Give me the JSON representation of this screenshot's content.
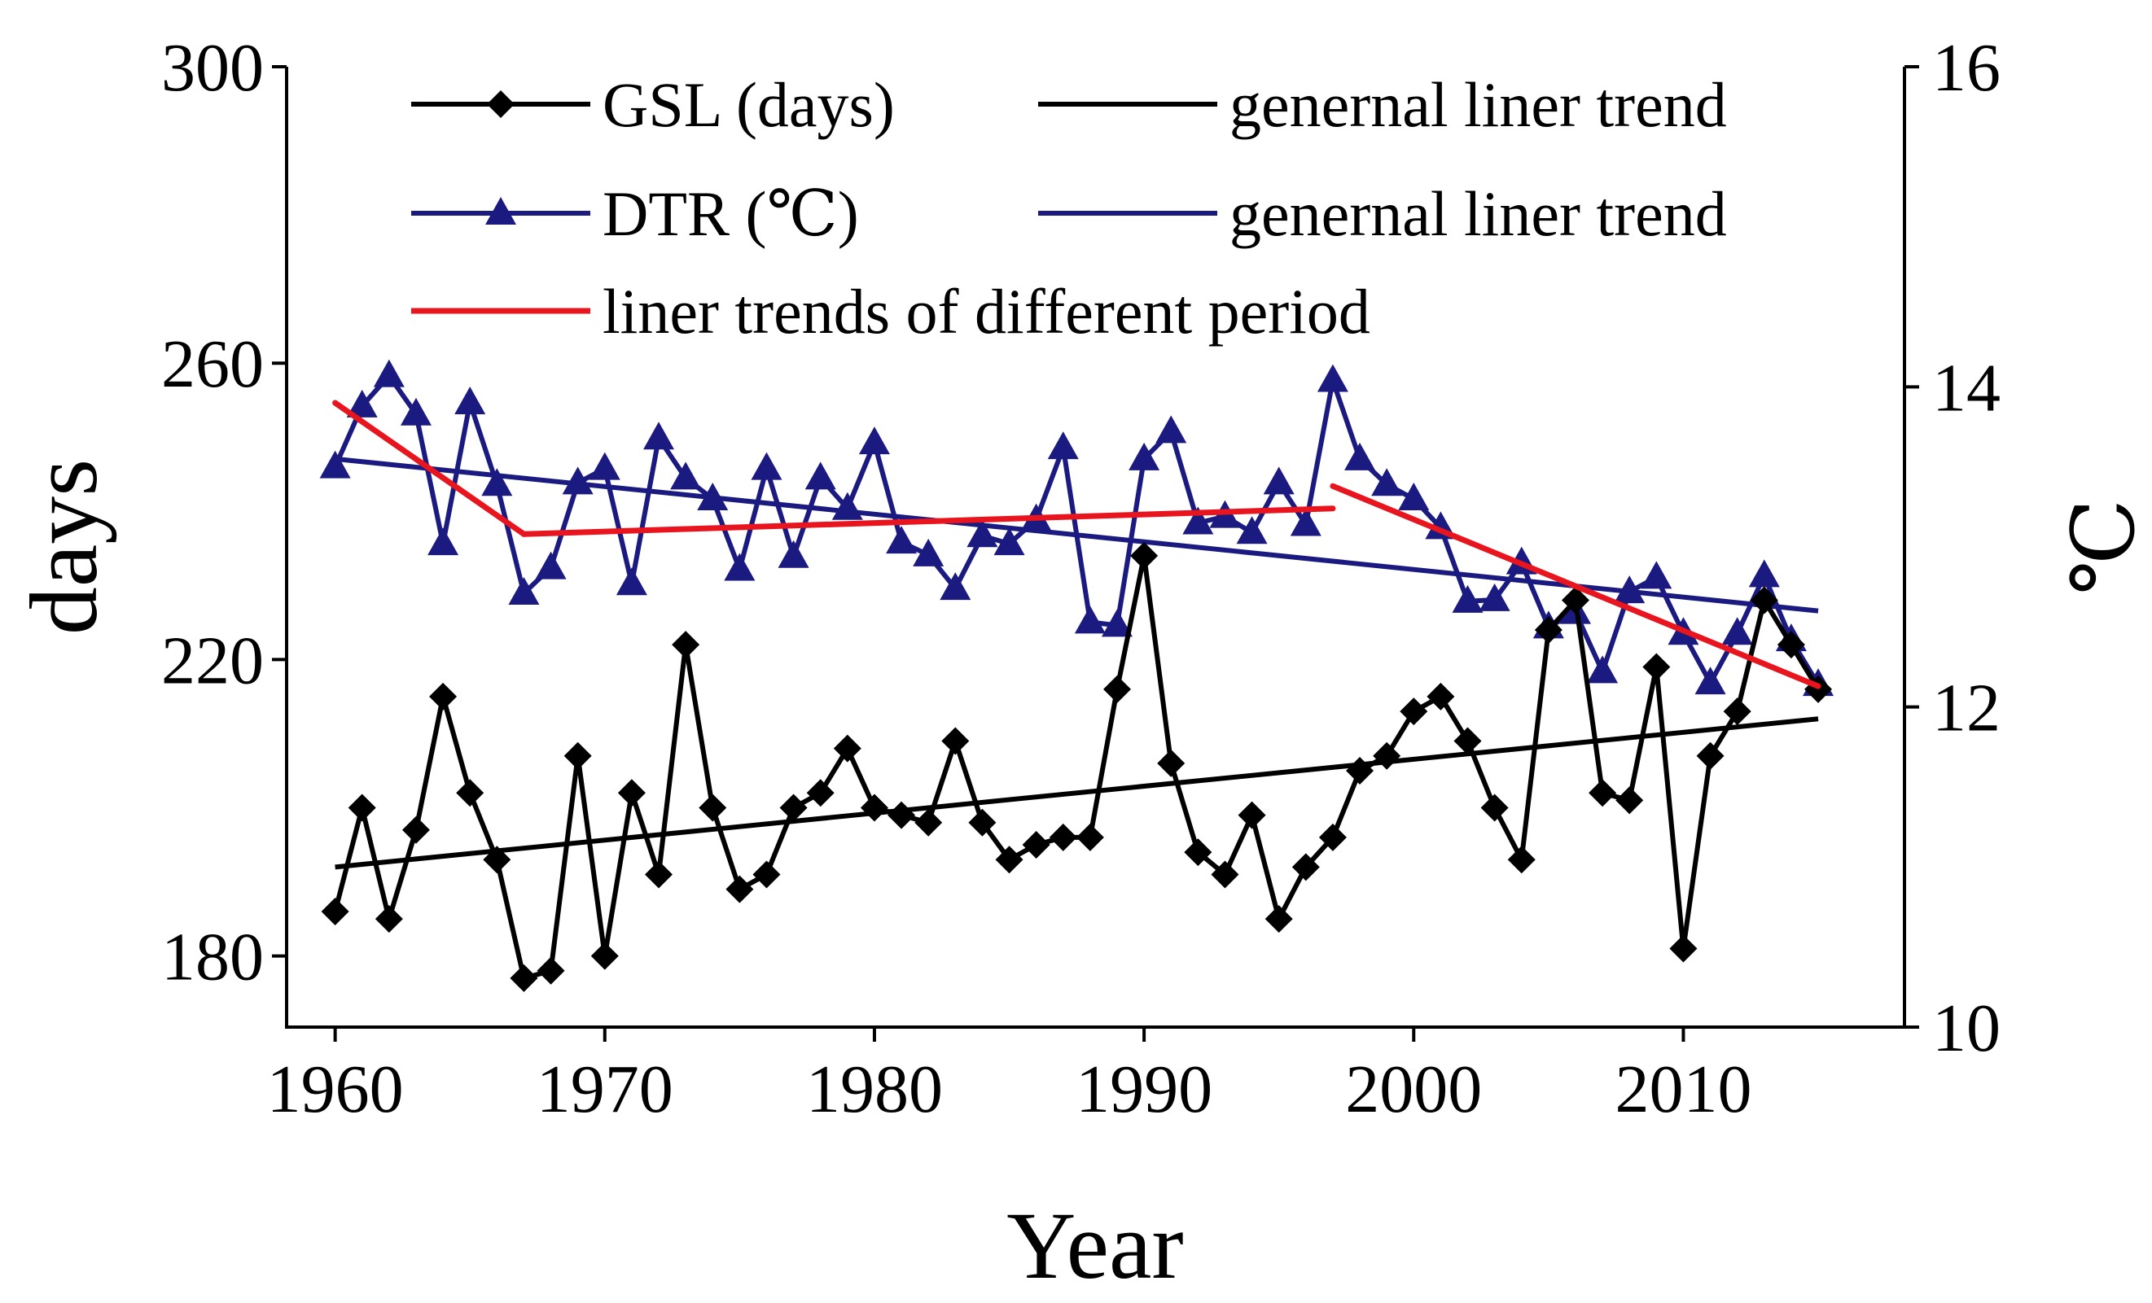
{
  "chart_data": {
    "type": "line",
    "title": "",
    "xlabel": "Year",
    "ylabel_left": "days",
    "ylabel_right": "℃",
    "x_ticks": [
      "1960",
      "1970",
      "1980",
      "1990",
      "2000",
      "2010"
    ],
    "y_left_ticks": [
      "180",
      "220",
      "260",
      "300"
    ],
    "y_right_ticks": [
      "10",
      "12",
      "14",
      "16"
    ],
    "xlim": [
      1958.2,
      2018.2
    ],
    "ylim_left": [
      170.4,
      300
    ],
    "ylim_right": [
      10,
      16
    ],
    "grid": false,
    "legend_position": "top",
    "legend": {
      "gsl": "GSL (days)",
      "gsl_trend": "genernal liner trend",
      "dtr": "DTR (℃)",
      "dtr_trend": "genernal liner trend",
      "periods": "liner trends of different period"
    },
    "series": [
      {
        "key": "gsl",
        "name": "GSL (days)",
        "axis": "left",
        "color": "#000000",
        "marker": "diamond",
        "x": [
          1960,
          1961,
          1962,
          1963,
          1964,
          1965,
          1966,
          1967,
          1968,
          1969,
          1970,
          1971,
          1972,
          1973,
          1974,
          1975,
          1976,
          1977,
          1978,
          1979,
          1980,
          1981,
          1982,
          1983,
          1984,
          1985,
          1986,
          1987,
          1988,
          1989,
          1990,
          1991,
          1992,
          1993,
          1994,
          1995,
          1996,
          1997,
          1998,
          1999,
          2000,
          2001,
          2002,
          2003,
          2004,
          2005,
          2006,
          2007,
          2008,
          2009,
          2010,
          2011,
          2012,
          2013,
          2014,
          2015
        ],
        "y": [
          186,
          200,
          185,
          197,
          215,
          202,
          193,
          177,
          178,
          207,
          180,
          202,
          191,
          222,
          200,
          189,
          191,
          200,
          202,
          208,
          200,
          199,
          198,
          209,
          198,
          193,
          195,
          196,
          196,
          216,
          234,
          206,
          194,
          191,
          199,
          185,
          192,
          196,
          205,
          207,
          213,
          215,
          209,
          200,
          193,
          224,
          228,
          202,
          201,
          219,
          181,
          207,
          213,
          228,
          222,
          216
        ]
      },
      {
        "key": "dtr",
        "name": "DTR (℃)",
        "axis": "right",
        "color": "#1a1a80",
        "marker": "triangle",
        "x": [
          1960,
          1961,
          1962,
          1963,
          1964,
          1965,
          1966,
          1967,
          1968,
          1969,
          1970,
          1971,
          1972,
          1973,
          1974,
          1975,
          1976,
          1977,
          1978,
          1979,
          1980,
          1981,
          1982,
          1983,
          1984,
          1985,
          1986,
          1987,
          1988,
          1989,
          1990,
          1991,
          1992,
          1993,
          1994,
          1995,
          1996,
          1997,
          1998,
          1999,
          2000,
          2001,
          2002,
          2003,
          2004,
          2005,
          2006,
          2007,
          2008,
          2009,
          2010,
          2011,
          2012,
          2013,
          2014,
          2015
        ],
        "y": [
          13.5,
          13.88,
          14.07,
          13.83,
          13.02,
          13.9,
          13.39,
          12.71,
          12.87,
          13.4,
          13.49,
          12.77,
          13.68,
          13.43,
          13.3,
          12.86,
          13.49,
          12.94,
          13.43,
          13.24,
          13.65,
          13.03,
          12.95,
          12.74,
          13.07,
          13.02,
          13.17,
          13.62,
          12.53,
          12.51,
          13.55,
          13.72,
          13.15,
          13.19,
          13.09,
          13.4,
          13.14,
          14.04,
          13.55,
          13.39,
          13.3,
          13.12,
          12.66,
          12.67,
          12.9,
          12.5,
          12.59,
          12.22,
          12.72,
          12.81,
          12.46,
          12.15,
          12.46,
          12.82,
          12.42,
          12.14
        ]
      },
      {
        "key": "gsl_trend",
        "name": "genernal liner trend",
        "axis": "left",
        "color": "#000000",
        "x": [
          1960,
          2015
        ],
        "y": [
          192,
          212
        ]
      },
      {
        "key": "dtr_trend",
        "name": "genernal liner trend",
        "axis": "right",
        "color": "#1a1a80",
        "x": [
          1960,
          2015
        ],
        "y": [
          13.55,
          12.6
        ]
      },
      {
        "key": "period_trends",
        "name": "liner trends of different period",
        "axis": "right",
        "color": "#e8141e",
        "segments": [
          {
            "x": [
              1960,
              1967
            ],
            "y": [
              13.9,
              13.08
            ]
          },
          {
            "x": [
              1967,
              1997
            ],
            "y": [
              13.08,
              13.24
            ]
          },
          {
            "x": [
              1997,
              2015
            ],
            "y": [
              13.38,
              12.13
            ]
          }
        ]
      }
    ]
  }
}
